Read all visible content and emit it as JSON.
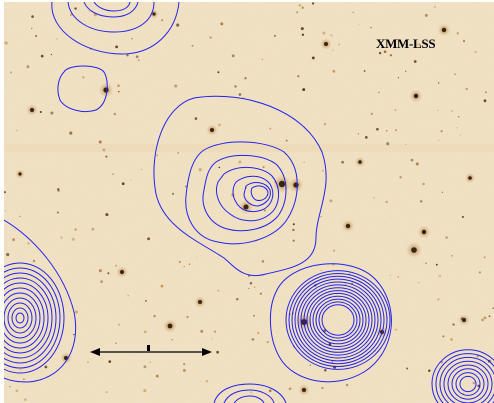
{
  "field_label": "XMM-LSS",
  "colors": {
    "background_sky": "#f2e5cc",
    "contour": "#2222ee",
    "source": "#3a2410",
    "halo": "#c9923f"
  },
  "contour_groups": [
    "top-left-group",
    "small-loop",
    "central-group",
    "bright-source-group",
    "left-edge-group",
    "bottom-right-group",
    "bottom-center-group"
  ],
  "scale_bar": "arrow-with-center-tick"
}
